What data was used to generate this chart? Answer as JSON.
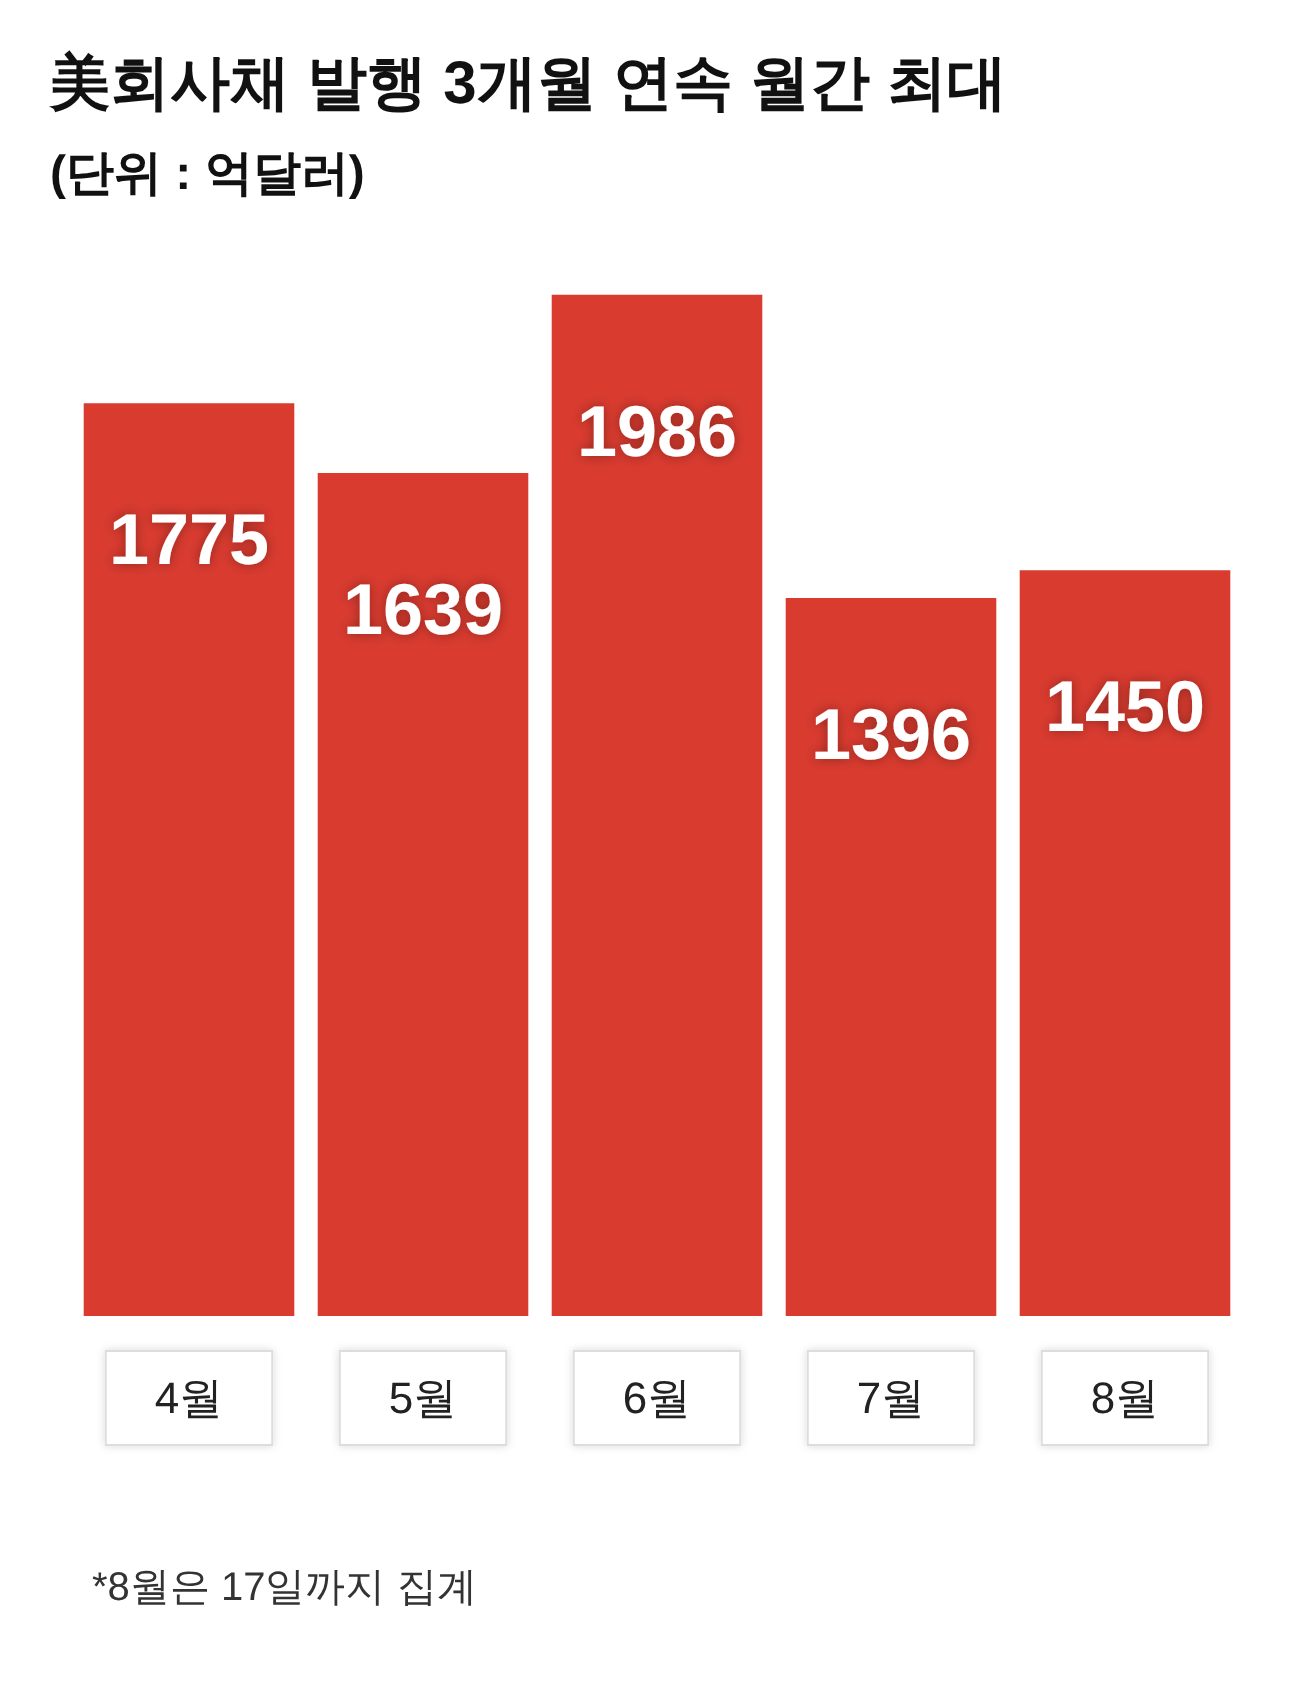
{
  "chart_data": {
    "type": "bar",
    "title": "美회사채 발행 3개월 연속 월간 최대",
    "subtitle": "(단위 : 억달러)",
    "categories": [
      "4월",
      "5월",
      "6월",
      "7월",
      "8월"
    ],
    "values": [
      1775,
      1639,
      1986,
      1396,
      1450
    ],
    "color": "#d93b2f",
    "data_labels": true,
    "annotations": [
      "*8월은 17일까지 집계"
    ]
  }
}
